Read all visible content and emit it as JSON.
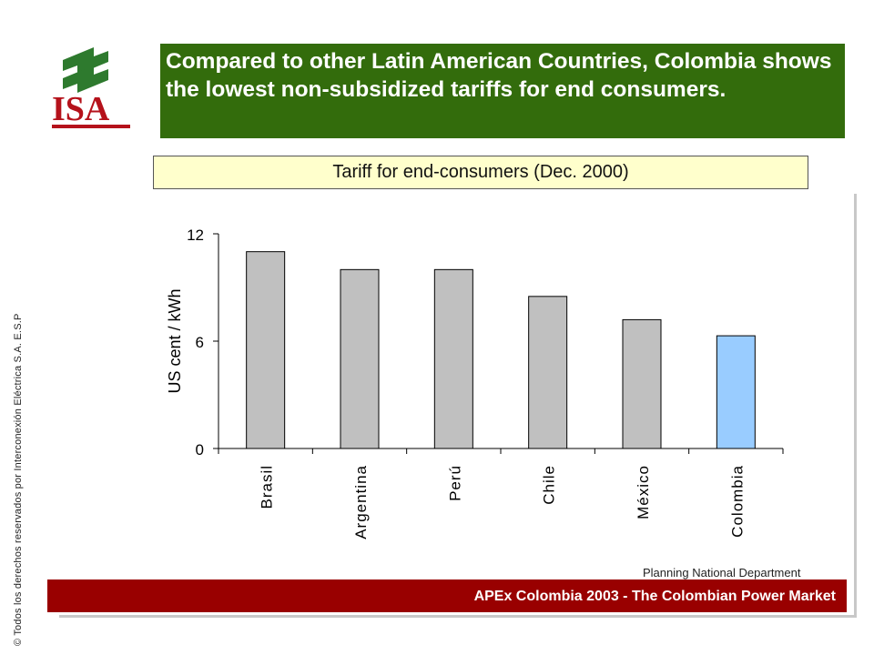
{
  "logo": {
    "text": "ISA",
    "colors": {
      "green": "#2e7a2e",
      "red": "#b5121b"
    }
  },
  "title": "Compared to other Latin American Countries, Colombia shows the lowest non-subsidized tariffs for end consumers.",
  "subtitle": "Tariff for end-consumers (Dec. 2000)",
  "side_copyright": "© Todos los derechos reservados por Interconexión Eléctrica S.A. E.S.P",
  "footer": {
    "department": "Planning National Department",
    "bar_text": "APEx Colombia 2003 - The Colombian Power Market"
  },
  "colors": {
    "title_bg": "#336c0c",
    "subtitle_bg": "#ffffcc",
    "footer_bg": "#990000",
    "bar_gray": "#c0c0c0",
    "bar_highlight": "#99ccff"
  },
  "chart_data": {
    "type": "bar",
    "categories": [
      "Brasil",
      "Argentina",
      "Perú",
      "Chile",
      "México",
      "Colombia"
    ],
    "values": [
      11.0,
      10.0,
      10.0,
      8.5,
      7.2,
      6.3
    ],
    "highlight_index": 5,
    "title": "Tariff for end-consumers (Dec. 2000)",
    "xlabel": "",
    "ylabel": "US cent / kWh",
    "ylim": [
      0,
      12
    ],
    "yticks": [
      0,
      6,
      12
    ],
    "grid": false,
    "legend": "none"
  }
}
